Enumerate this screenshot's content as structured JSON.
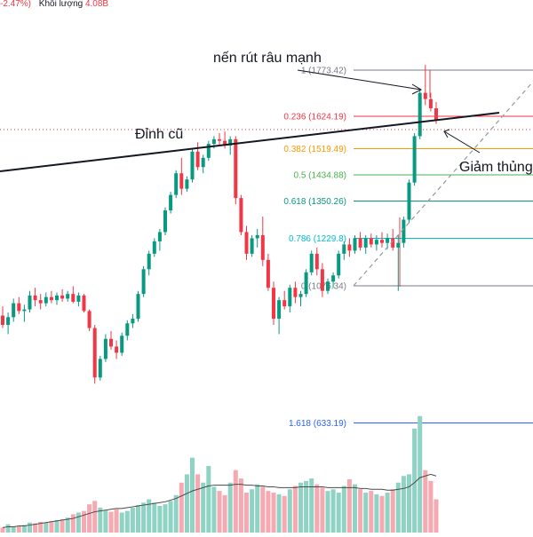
{
  "header": {
    "change_text": "-2.47%)",
    "volume_label": "Khối lượng",
    "volume_value": "4.08B"
  },
  "annotations": {
    "wick_label": "nến rút râu mạnh",
    "old_peak_label": "Đỉnh cũ",
    "break_label": "Giảm thủng"
  },
  "colors": {
    "up": "#089981",
    "down": "#f23645",
    "vol_up": "#8fd3c4",
    "vol_down": "#f7a9b1",
    "trendline": "#131722",
    "dashed_line": "#9598a1",
    "price_dotted": "#f23645"
  },
  "fib_levels": [
    {
      "ratio": "1",
      "price": 1773.42,
      "label": "1 (1773.42)",
      "color": "#787b86"
    },
    {
      "ratio": "0.236",
      "price": 1624.19,
      "label": "0.236 (1624.19)",
      "color": "#f23645"
    },
    {
      "ratio": "0.382",
      "price": 1519.49,
      "label": "0.382 (1519.49)",
      "color": "#ff9800"
    },
    {
      "ratio": "0.5",
      "price": 1434.88,
      "label": "0.5 (1434.88)",
      "color": "#4caf50"
    },
    {
      "ratio": "0.618",
      "price": 1350.26,
      "label": "0.618 (1350.26)",
      "color": "#089981"
    },
    {
      "ratio": "0.786",
      "price": 1229.8,
      "label": "0.786 (1229.8)",
      "color": "#00bcd4"
    },
    {
      "ratio": "0",
      "price": 1076.34,
      "label": "0 (1076.34)",
      "color": "#787b86"
    },
    {
      "ratio": "1.618",
      "price": 633.19,
      "label": "1.618 (633.19)",
      "color": "#2962ff"
    }
  ],
  "chart_data": {
    "type": "candlestick",
    "title": "",
    "xlabel": "",
    "ylabel": "",
    "ylim": [
      380,
      2130
    ],
    "volume_ylim": [
      0,
      160
    ],
    "candles": [
      [
        980,
        1010,
        940,
        950
      ],
      [
        950,
        990,
        920,
        975
      ],
      [
        975,
        1035,
        960,
        1020
      ],
      [
        1020,
        1040,
        985,
        995
      ],
      [
        995,
        1015,
        960,
        1000
      ],
      [
        1000,
        1060,
        990,
        1045
      ],
      [
        1045,
        1070,
        1010,
        1030
      ],
      [
        1030,
        1050,
        1000,
        1020
      ],
      [
        1020,
        1055,
        1010,
        1040
      ],
      [
        1040,
        1060,
        1020,
        1030
      ],
      [
        1030,
        1055,
        1015,
        1045
      ],
      [
        1045,
        1065,
        1025,
        1035
      ],
      [
        1035,
        1060,
        1025,
        1050
      ],
      [
        1050,
        1075,
        1020,
        1025
      ],
      [
        1025,
        1055,
        1010,
        1045
      ],
      [
        1045,
        1050,
        990,
        995
      ],
      [
        995,
        1000,
        930,
        940
      ],
      [
        940,
        950,
        760,
        780
      ],
      [
        780,
        850,
        770,
        840
      ],
      [
        840,
        920,
        830,
        905
      ],
      [
        905,
        930,
        870,
        880
      ],
      [
        880,
        900,
        840,
        860
      ],
      [
        860,
        925,
        850,
        915
      ],
      [
        915,
        965,
        900,
        955
      ],
      [
        955,
        985,
        940,
        970
      ],
      [
        970,
        1060,
        960,
        1050
      ],
      [
        1050,
        1140,
        1040,
        1130
      ],
      [
        1130,
        1190,
        1110,
        1180
      ],
      [
        1180,
        1230,
        1170,
        1220
      ],
      [
        1220,
        1260,
        1190,
        1250
      ],
      [
        1250,
        1330,
        1240,
        1320
      ],
      [
        1320,
        1380,
        1310,
        1370
      ],
      [
        1370,
        1450,
        1360,
        1440
      ],
      [
        1440,
        1490,
        1370,
        1390
      ],
      [
        1390,
        1430,
        1380,
        1420
      ],
      [
        1420,
        1520,
        1410,
        1510
      ],
      [
        1510,
        1540,
        1450,
        1460
      ],
      [
        1460,
        1500,
        1440,
        1490
      ],
      [
        1490,
        1545,
        1480,
        1535
      ],
      [
        1535,
        1560,
        1520,
        1550
      ],
      [
        1550,
        1570,
        1530,
        1545
      ],
      [
        1545,
        1575,
        1520,
        1530
      ],
      [
        1530,
        1560,
        1500,
        1550
      ],
      [
        1550,
        1560,
        1340,
        1360
      ],
      [
        1360,
        1370,
        1240,
        1250
      ],
      [
        1250,
        1270,
        1160,
        1180
      ],
      [
        1180,
        1240,
        1170,
        1230
      ],
      [
        1230,
        1260,
        1200,
        1240
      ],
      [
        1240,
        1300,
        1140,
        1160
      ],
      [
        1160,
        1180,
        1060,
        1070
      ],
      [
        1070,
        1090,
        950,
        970
      ],
      [
        970,
        1040,
        920,
        1030
      ],
      [
        1030,
        1060,
        1000,
        1010
      ],
      [
        1010,
        1080,
        990,
        1070
      ],
      [
        1070,
        1090,
        1020,
        1040
      ],
      [
        1040,
        1060,
        1010,
        1050
      ],
      [
        1050,
        1130,
        1040,
        1120
      ],
      [
        1120,
        1190,
        1110,
        1180
      ],
      [
        1180,
        1200,
        1110,
        1130
      ],
      [
        1130,
        1150,
        1040,
        1060
      ],
      [
        1060,
        1100,
        1050,
        1090
      ],
      [
        1090,
        1120,
        1070,
        1110
      ],
      [
        1110,
        1190,
        1100,
        1180
      ],
      [
        1180,
        1220,
        1160,
        1210
      ],
      [
        1210,
        1230,
        1170,
        1190
      ],
      [
        1190,
        1240,
        1180,
        1230
      ],
      [
        1230,
        1250,
        1190,
        1200
      ],
      [
        1200,
        1240,
        1180,
        1230
      ],
      [
        1230,
        1245,
        1200,
        1210
      ],
      [
        1210,
        1240,
        1190,
        1225
      ],
      [
        1225,
        1250,
        1200,
        1215
      ],
      [
        1215,
        1245,
        1195,
        1230
      ],
      [
        1230,
        1260,
        1190,
        1200
      ],
      [
        1200,
        1240,
        1060,
        1215
      ],
      [
        1215,
        1300,
        1200,
        1290
      ],
      [
        1290,
        1420,
        1280,
        1410
      ],
      [
        1410,
        1570,
        1400,
        1560
      ],
      [
        1560,
        1710,
        1550,
        1700
      ],
      [
        1700,
        1790,
        1660,
        1680
      ],
      [
        1680,
        1700,
        1640,
        1650
      ],
      [
        1650,
        1670,
        1600,
        1610
      ]
    ],
    "volume": [
      6,
      10,
      7,
      8,
      9,
      12,
      11,
      13,
      12,
      14,
      15,
      16,
      18,
      22,
      24,
      26,
      34,
      38,
      30,
      27,
      25,
      28,
      24,
      26,
      30,
      33,
      36,
      40,
      36,
      32,
      34,
      38,
      45,
      60,
      70,
      90,
      70,
      60,
      80,
      55,
      50,
      45,
      60,
      75,
      65,
      48,
      52,
      58,
      55,
      50,
      48,
      46,
      44,
      52,
      56,
      60,
      62,
      65,
      58,
      54,
      50,
      52,
      48,
      56,
      64,
      58,
      52,
      48,
      50,
      46,
      44,
      48,
      52,
      60,
      68,
      70,
      125,
      140,
      75,
      62,
      40
    ],
    "volume_ma": [
      6,
      7,
      7,
      8,
      8,
      9,
      10,
      11,
      12,
      13,
      14,
      15,
      16,
      17,
      19,
      21,
      23,
      25,
      26,
      27,
      28,
      29,
      29,
      30,
      31,
      32,
      33,
      34,
      35,
      36,
      37,
      39,
      41,
      44,
      47,
      50,
      52,
      54,
      56,
      57,
      57,
      57,
      57,
      58,
      58,
      57,
      57,
      56,
      56,
      55,
      55,
      54,
      54,
      54,
      54,
      55,
      55,
      55,
      55,
      55,
      54,
      54,
      54,
      54,
      54,
      54,
      53,
      53,
      52,
      52,
      52,
      51,
      51,
      52,
      53,
      55,
      60,
      66,
      68,
      70,
      68
    ]
  }
}
